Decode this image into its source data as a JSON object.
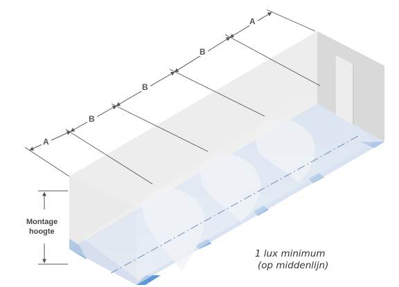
{
  "dimension_labels": {
    "a_left": "A",
    "b_1": "B",
    "b_2": "B",
    "b_3": "B",
    "a_right": "A"
  },
  "mounting_height": {
    "line1": "Montage",
    "line2": "hoogte"
  },
  "note": {
    "line1": "1 lux minimum",
    "line2": "(op middenlijn)"
  },
  "colors": {
    "floor": "#b9cfee",
    "floor_edge": "#5f96d8",
    "wall_back": "#e9e9e9",
    "wall_front": "#f1f1f1",
    "end_wall": "#d6d6d6",
    "light_pool": "#e6ecf5",
    "dimension_line": "#555555"
  }
}
